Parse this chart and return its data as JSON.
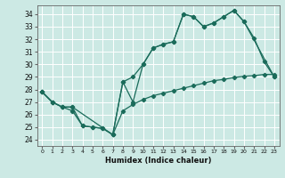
{
  "xlabel": "Humidex (Indice chaleur)",
  "ylabel": "",
  "bg_color": "#cce9e4",
  "grid_color": "#ffffff",
  "line_color": "#1a6b5a",
  "xlim": [
    -0.5,
    23.5
  ],
  "ylim": [
    23.5,
    34.7
  ],
  "xticks": [
    0,
    1,
    2,
    3,
    4,
    5,
    6,
    7,
    8,
    9,
    10,
    11,
    12,
    13,
    14,
    15,
    16,
    17,
    18,
    19,
    20,
    21,
    22,
    23
  ],
  "yticks": [
    24,
    25,
    26,
    27,
    28,
    29,
    30,
    31,
    32,
    33,
    34
  ],
  "line1_x": [
    0,
    1,
    2,
    3,
    4,
    5,
    6,
    7,
    8,
    9,
    10,
    11,
    12,
    13,
    14,
    15,
    16,
    17,
    18,
    19,
    20,
    21,
    22,
    23
  ],
  "line1_y": [
    27.8,
    27.0,
    26.6,
    26.3,
    25.1,
    25.0,
    24.9,
    24.4,
    26.3,
    26.8,
    27.2,
    27.5,
    27.7,
    27.9,
    28.1,
    28.3,
    28.5,
    28.7,
    28.8,
    28.95,
    29.05,
    29.1,
    29.2,
    29.2
  ],
  "line2_x": [
    0,
    1,
    2,
    3,
    4,
    5,
    6,
    7,
    8,
    9,
    10,
    11,
    12,
    13,
    14,
    15,
    16,
    17,
    18,
    19,
    20,
    21,
    22,
    23
  ],
  "line2_y": [
    27.8,
    27.0,
    26.6,
    26.6,
    25.1,
    25.0,
    24.9,
    24.4,
    28.6,
    29.0,
    30.0,
    31.3,
    31.6,
    31.8,
    34.0,
    33.8,
    33.0,
    33.3,
    33.8,
    34.3,
    33.4,
    32.1,
    30.2,
    29.0
  ],
  "line3_x": [
    0,
    1,
    2,
    3,
    7,
    8,
    9,
    10,
    11,
    12,
    13,
    14,
    15,
    16,
    17,
    18,
    19,
    20,
    23
  ],
  "line3_y": [
    27.8,
    27.0,
    26.6,
    26.6,
    24.4,
    28.6,
    27.0,
    30.0,
    31.3,
    31.6,
    31.8,
    34.0,
    33.8,
    33.0,
    33.3,
    33.8,
    34.3,
    33.4,
    29.0
  ]
}
